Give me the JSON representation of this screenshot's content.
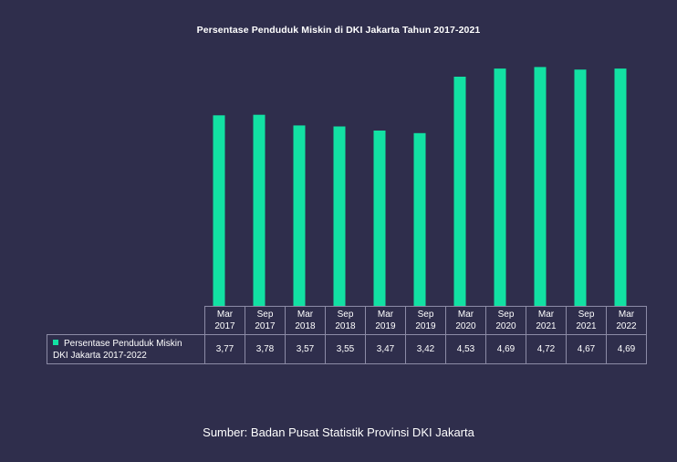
{
  "chart_data": {
    "type": "bar",
    "title": "Persentase Penduduk Miskin di DKI Jakarta Tahun 2017-2021",
    "categories": [
      [
        "Mar",
        "2017"
      ],
      [
        "Sep",
        "2017"
      ],
      [
        "Mar",
        "2018"
      ],
      [
        "Sep",
        "2018"
      ],
      [
        "Mar",
        "2019"
      ],
      [
        "Sep",
        "2019"
      ],
      [
        "Mar",
        "2020"
      ],
      [
        "Sep",
        "2020"
      ],
      [
        "Mar",
        "2021"
      ],
      [
        "Sep",
        "2021"
      ],
      [
        "Mar",
        "2022"
      ]
    ],
    "series": [
      {
        "name": "Persentase Penduduk Miskin DKI Jakarta 2017-2022",
        "name_lines": [
          "Persentase Penduduk Miskin",
          "DKI Jakarta 2017-2022"
        ],
        "values": [
          3.77,
          3.78,
          3.57,
          3.55,
          3.47,
          3.42,
          4.53,
          4.69,
          4.72,
          4.67,
          4.69
        ],
        "labels": [
          "3,77",
          "3,78",
          "3,57",
          "3,55",
          "3,47",
          "3,42",
          "4,53",
          "4,69",
          "4,72",
          "4,67",
          "4,69"
        ],
        "color": "#12e1a3"
      }
    ],
    "ylim": [
      0,
      4.8
    ],
    "grid": false,
    "legend": "data-table"
  },
  "source": "Sumber: Badan Pusat Statistik Provinsi DKI Jakarta",
  "colors": {
    "background": "#2f2e4c",
    "bar": "#12e1a3",
    "table_border": "#8c8ba6"
  }
}
